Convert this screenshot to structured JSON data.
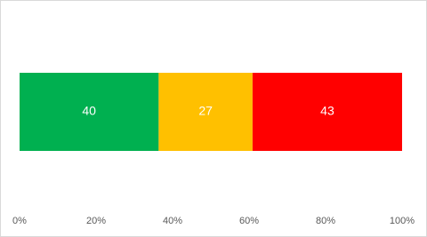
{
  "chart_data": {
    "type": "bar",
    "orientation": "horizontal",
    "stacking": "percent",
    "values": [
      40,
      27,
      43
    ],
    "colors": [
      "#00b050",
      "#ffc000",
      "#ff0000"
    ],
    "xlim": [
      0,
      100
    ],
    "xticks": [
      {
        "value": 0,
        "label": "0%"
      },
      {
        "value": 20,
        "label": "20%"
      },
      {
        "value": 40,
        "label": "40%"
      },
      {
        "value": 60,
        "label": "60%"
      },
      {
        "value": 80,
        "label": "80%"
      },
      {
        "value": 100,
        "label": "100%"
      }
    ],
    "grid": false
  }
}
